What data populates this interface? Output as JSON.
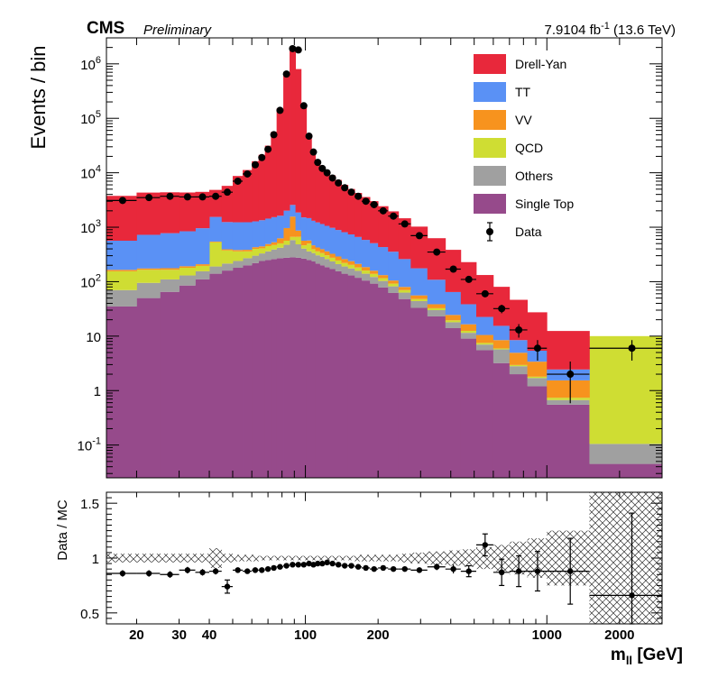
{
  "header": {
    "cms": "CMS",
    "preliminary": "Preliminary",
    "lumi_value": "7.9104 fb",
    "lumi_exp": "-1",
    "lumi_energy": " (13.6 TeV)"
  },
  "colors": {
    "drell_yan": "#e8283b",
    "tt": "#5a91f5",
    "vv": "#f7931e",
    "qcd": "#cfdd33",
    "others": "#a0a0a0",
    "single_top": "#964a8b",
    "data": "#000000"
  },
  "chart_data": {
    "type": "bar",
    "stacked": true,
    "title": "",
    "xlabel_main": "m",
    "xlabel_sub": "ll",
    "xlabel_unit": " [GeV]",
    "ylabel": "Events / bin",
    "ratio_ylabel": "Data / MC",
    "xscale": "log",
    "yscale": "log",
    "xlim": [
      15,
      3000
    ],
    "ylim": [
      0.025,
      3000000
    ],
    "ratio_ylim": [
      0.4,
      1.6
    ],
    "legend_placement": "top-right",
    "x_tick_labels": [
      {
        "value": 20,
        "label": "20"
      },
      {
        "value": 30,
        "label": "30"
      },
      {
        "value": 40,
        "label": "40"
      },
      {
        "value": 100,
        "label": "100"
      },
      {
        "value": 200,
        "label": "200"
      },
      {
        "value": 1000,
        "label": "1000"
      },
      {
        "value": 2000,
        "label": "2000"
      }
    ],
    "y_tick_labels": [
      {
        "value": 0.1,
        "base": "10",
        "exp": "-1"
      },
      {
        "value": 1,
        "base": "1",
        "exp": ""
      },
      {
        "value": 10,
        "base": "10",
        "exp": ""
      },
      {
        "value": 100,
        "base": "10",
        "exp": "2"
      },
      {
        "value": 1000,
        "base": "10",
        "exp": "3"
      },
      {
        "value": 10000,
        "base": "10",
        "exp": "4"
      },
      {
        "value": 100000,
        "base": "10",
        "exp": "5"
      },
      {
        "value": 1000000,
        "base": "10",
        "exp": "6"
      }
    ],
    "ratio_tick_labels": [
      {
        "value": 0.5,
        "label": "0.5"
      },
      {
        "value": 1,
        "label": "1"
      },
      {
        "value": 1.5,
        "label": "1.5"
      }
    ],
    "bins": [
      [
        15,
        20
      ],
      [
        20,
        25
      ],
      [
        25,
        30
      ],
      [
        30,
        35
      ],
      [
        35,
        40
      ],
      [
        40,
        45
      ],
      [
        45,
        50
      ],
      [
        50,
        55
      ],
      [
        55,
        60
      ],
      [
        60,
        64
      ],
      [
        64,
        68
      ],
      [
        68,
        72
      ],
      [
        72,
        76
      ],
      [
        76,
        81
      ],
      [
        81,
        86
      ],
      [
        86,
        91
      ],
      [
        91,
        96
      ],
      [
        96,
        101
      ],
      [
        101,
        106
      ],
      [
        106,
        110
      ],
      [
        110,
        115
      ],
      [
        115,
        120
      ],
      [
        120,
        126
      ],
      [
        126,
        133
      ],
      [
        133,
        141
      ],
      [
        141,
        150
      ],
      [
        150,
        160
      ],
      [
        160,
        171
      ],
      [
        171,
        185
      ],
      [
        185,
        200
      ],
      [
        200,
        220
      ],
      [
        220,
        243
      ],
      [
        243,
        273
      ],
      [
        273,
        320
      ],
      [
        320,
        380
      ],
      [
        380,
        440
      ],
      [
        440,
        510
      ],
      [
        510,
        600
      ],
      [
        600,
        700
      ],
      [
        700,
        830
      ],
      [
        830,
        1000
      ],
      [
        1000,
        1500
      ],
      [
        1500,
        3000
      ]
    ],
    "series": [
      {
        "name": "Single Top",
        "values": [
          35,
          50,
          65,
          85,
          110,
          140,
          160,
          180,
          200,
          220,
          240,
          250,
          260,
          270,
          275,
          280,
          275,
          265,
          250,
          235,
          215,
          200,
          185,
          170,
          155,
          140,
          130,
          118,
          105,
          92,
          78,
          62,
          48,
          33,
          23,
          14,
          9,
          5.5,
          3.2,
          2.0,
          1.2,
          0.55,
          0.045
        ]
      },
      {
        "name": "Others",
        "values": [
          35,
          45,
          45,
          45,
          45,
          50,
          55,
          60,
          70,
          80,
          90,
          110,
          130,
          150,
          200,
          300,
          210,
          140,
          110,
          100,
          90,
          85,
          75,
          65,
          55,
          50,
          45,
          40,
          35,
          30,
          25,
          20,
          15,
          11,
          7,
          4,
          2.5,
          1.5,
          2.5,
          0.8,
          0.5,
          0.12,
          0.06
        ]
      },
      {
        "name": "QCD",
        "values": [
          85,
          70,
          55,
          50,
          40,
          340,
          160,
          120,
          90,
          100,
          80,
          90,
          80,
          85,
          90,
          85,
          180,
          60,
          140,
          60,
          55,
          50,
          45,
          40,
          35,
          30,
          28,
          24,
          20,
          17,
          13,
          10,
          7,
          4,
          2.5,
          1.5,
          1,
          0.5,
          0.25,
          0.15,
          0.1,
          0.07,
          9.9
        ]
      },
      {
        "name": "VV",
        "values": [
          10,
          10,
          12,
          12,
          14,
          15,
          18,
          22,
          25,
          30,
          35,
          40,
          60,
          120,
          400,
          900,
          200,
          100,
          70,
          70,
          65,
          60,
          55,
          50,
          45,
          40,
          35,
          30,
          25,
          20,
          16,
          13,
          10,
          8,
          6,
          5,
          4,
          3,
          2.5,
          2.0,
          1.6,
          0.8,
          0.0
        ]
      },
      {
        "name": "TT",
        "values": [
          400,
          550,
          600,
          650,
          750,
          1000,
          850,
          850,
          850,
          850,
          900,
          950,
          1000,
          1000,
          1050,
          1000,
          1000,
          950,
          900,
          850,
          800,
          750,
          700,
          650,
          600,
          550,
          500,
          450,
          400,
          350,
          300,
          250,
          180,
          120,
          70,
          40,
          22,
          12,
          7,
          3.5,
          2.0,
          0.9,
          0.0
        ]
      },
      {
        "name": "Drell-Yan",
        "values": [
          3200,
          3600,
          3600,
          3500,
          3500,
          3300,
          4500,
          7500,
          10000,
          15000,
          20000,
          30000,
          55000,
          150000,
          700000,
          2000000,
          800000,
          180000,
          50000,
          25000,
          16000,
          12000,
          10000,
          8000,
          6500,
          5200,
          4300,
          3600,
          3000,
          2500,
          2000,
          1600,
          1200,
          850,
          520,
          320,
          190,
          110,
          65,
          38,
          22,
          10,
          0.0
        ]
      }
    ],
    "data": {
      "name": "Data",
      "x": [
        17.5,
        22.5,
        27.5,
        32.5,
        37.5,
        42.5,
        47.5,
        52.5,
        57.5,
        62,
        66,
        70,
        74,
        78.5,
        83.5,
        88.5,
        93.5,
        98.5,
        103.5,
        108,
        112.5,
        117.5,
        123,
        129.5,
        137,
        145.5,
        155,
        165.5,
        178,
        192.5,
        210,
        231.5,
        258,
        296.5,
        350,
        410,
        475,
        555,
        650,
        765,
        915,
        1250,
        2250
      ],
      "y": [
        3100,
        3500,
        3700,
        3600,
        3600,
        3700,
        4400,
        7000,
        9500,
        14000,
        19000,
        27000,
        50000,
        140000,
        650000,
        1900000,
        1800000,
        170000,
        47000,
        24000,
        15500,
        12000,
        10000,
        8000,
        6500,
        5300,
        4400,
        3700,
        3000,
        2600,
        2000,
        1600,
        1150,
        700,
        350,
        170,
        110,
        60,
        32,
        13,
        6,
        2,
        6
      ]
    },
    "ratio": {
      "x": [
        17.5,
        22.5,
        27.5,
        32.5,
        37.5,
        42.5,
        47.5,
        52.5,
        57.5,
        62,
        66,
        70,
        74,
        78.5,
        83.5,
        88.5,
        93.5,
        98.5,
        103.5,
        108,
        112.5,
        117.5,
        123,
        129.5,
        137,
        145.5,
        155,
        165.5,
        178,
        192.5,
        210,
        231.5,
        258,
        296.5,
        350,
        410,
        475,
        555,
        650,
        765,
        915,
        1250,
        2250
      ],
      "y": [
        0.86,
        0.86,
        0.85,
        0.89,
        0.87,
        0.88,
        0.74,
        0.89,
        0.88,
        0.89,
        0.89,
        0.9,
        0.91,
        0.92,
        0.93,
        0.94,
        0.94,
        0.94,
        0.95,
        0.94,
        0.95,
        0.95,
        0.96,
        0.95,
        0.94,
        0.93,
        0.93,
        0.92,
        0.91,
        0.9,
        0.91,
        0.9,
        0.9,
        0.89,
        0.92,
        0.9,
        0.88,
        1.12,
        0.87,
        0.88,
        0.88,
        0.88,
        0.66
      ],
      "err": [
        0.03,
        0.03,
        0.03,
        0.03,
        0.03,
        0.03,
        0.06,
        0.02,
        0.02,
        0.02,
        0.01,
        0.01,
        0.01,
        0.01,
        0.01,
        0.01,
        0.01,
        0.01,
        0.01,
        0.01,
        0.01,
        0.01,
        0.01,
        0.01,
        0.01,
        0.01,
        0.01,
        0.01,
        0.01,
        0.01,
        0.01,
        0.01,
        0.01,
        0.02,
        0.03,
        0.04,
        0.05,
        0.1,
        0.12,
        0.14,
        0.18,
        0.3,
        0.75
      ],
      "unc": [
        0.04,
        0.04,
        0.04,
        0.04,
        0.04,
        0.09,
        0.04,
        0.03,
        0.03,
        0.03,
        0.02,
        0.02,
        0.02,
        0.02,
        0.02,
        0.02,
        0.02,
        0.02,
        0.02,
        0.02,
        0.02,
        0.02,
        0.02,
        0.02,
        0.02,
        0.02,
        0.02,
        0.03,
        0.03,
        0.03,
        0.03,
        0.03,
        0.04,
        0.05,
        0.06,
        0.07,
        0.08,
        0.1,
        0.12,
        0.15,
        0.18,
        0.25,
        0.6
      ]
    }
  }
}
